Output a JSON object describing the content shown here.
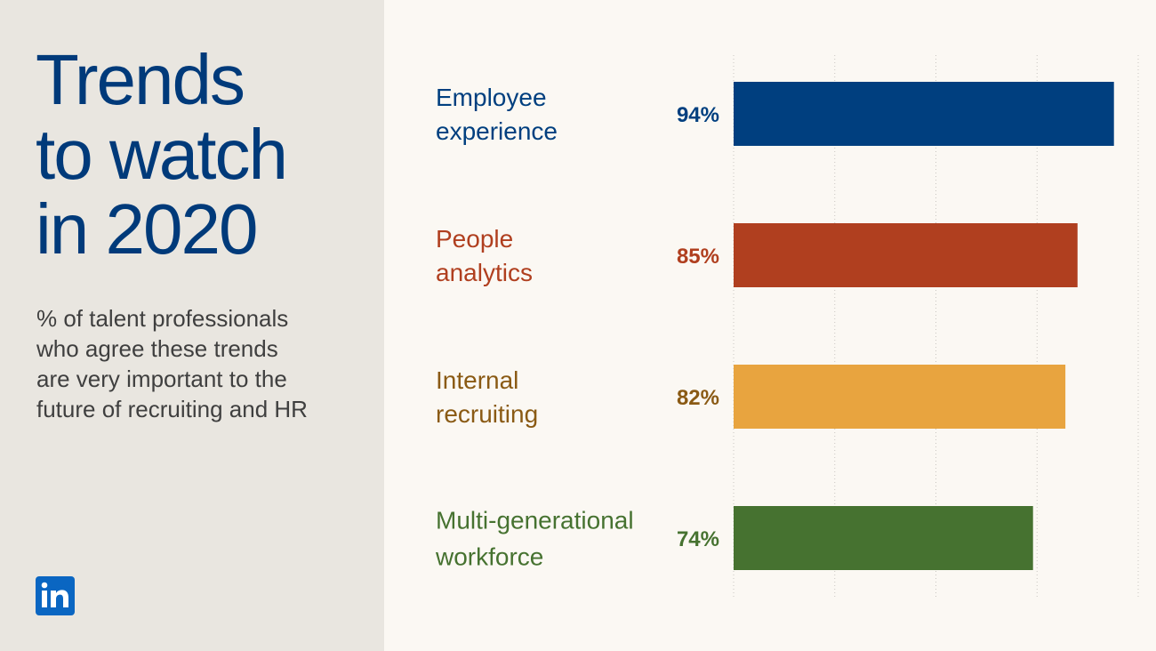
{
  "title_lines": [
    "Trends",
    "to watch",
    "in 2020"
  ],
  "subtitle_lines": [
    "% of talent professionals",
    "who agree these trends",
    "are very important to the",
    "future of recruiting and HR"
  ],
  "logo_text": "in",
  "colors": {
    "title": "#003a7a",
    "subtitle": "#3f3f3f",
    "left_panel": "#e9e6e0",
    "chart_background": "#fbf8f3",
    "grid": "#c9c6c1",
    "logo": "#0a66c2"
  },
  "chart_data": {
    "type": "bar",
    "orientation": "horizontal",
    "title": "Trends to watch in 2020",
    "categories": [
      [
        "Employee",
        "experience"
      ],
      [
        "People",
        "analytics"
      ],
      [
        "Internal",
        "recruiting"
      ],
      [
        "Multi-generational",
        "workforce"
      ]
    ],
    "values": [
      94,
      85,
      82,
      74
    ],
    "value_labels": [
      "94%",
      "85%",
      "82%",
      "74%"
    ],
    "colors": [
      "#003f7f",
      "#b03f1f",
      "#e8a43f",
      "#467230"
    ],
    "label_colors": [
      "#003f7f",
      "#b03f1f",
      "#8a5a14",
      "#467230"
    ],
    "xlim": [
      0,
      100
    ],
    "grid": true
  }
}
